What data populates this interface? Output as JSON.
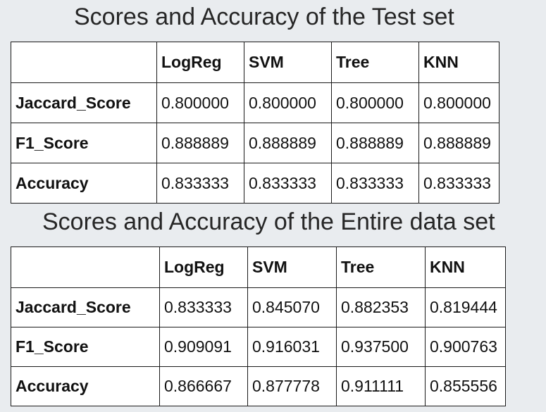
{
  "tables": [
    {
      "title": "Scores and Accuracy of the Test set",
      "columns": [
        "",
        "LogReg",
        "SVM",
        "Tree",
        "KNN"
      ],
      "rows": [
        {
          "label": "Jaccard_Score",
          "values": [
            "0.800000",
            "0.800000",
            "0.800000",
            "0.800000"
          ]
        },
        {
          "label": "F1_Score",
          "values": [
            "0.888889",
            "0.888889",
            "0.888889",
            "0.888889"
          ]
        },
        {
          "label": "Accuracy",
          "values": [
            "0.833333",
            "0.833333",
            "0.833333",
            "0.833333"
          ]
        }
      ]
    },
    {
      "title": "Scores and Accuracy of the Entire data set",
      "columns": [
        "",
        "LogReg",
        "SVM",
        "Tree",
        "KNN"
      ],
      "rows": [
        {
          "label": "Jaccard_Score",
          "values": [
            "0.833333",
            "0.845070",
            "0.882353",
            "0.819444"
          ]
        },
        {
          "label": "F1_Score",
          "values": [
            "0.909091",
            "0.916031",
            "0.937500",
            "0.900763"
          ]
        },
        {
          "label": "Accuracy",
          "values": [
            "0.866667",
            "0.877778",
            "0.911111",
            "0.855556"
          ]
        }
      ]
    }
  ]
}
